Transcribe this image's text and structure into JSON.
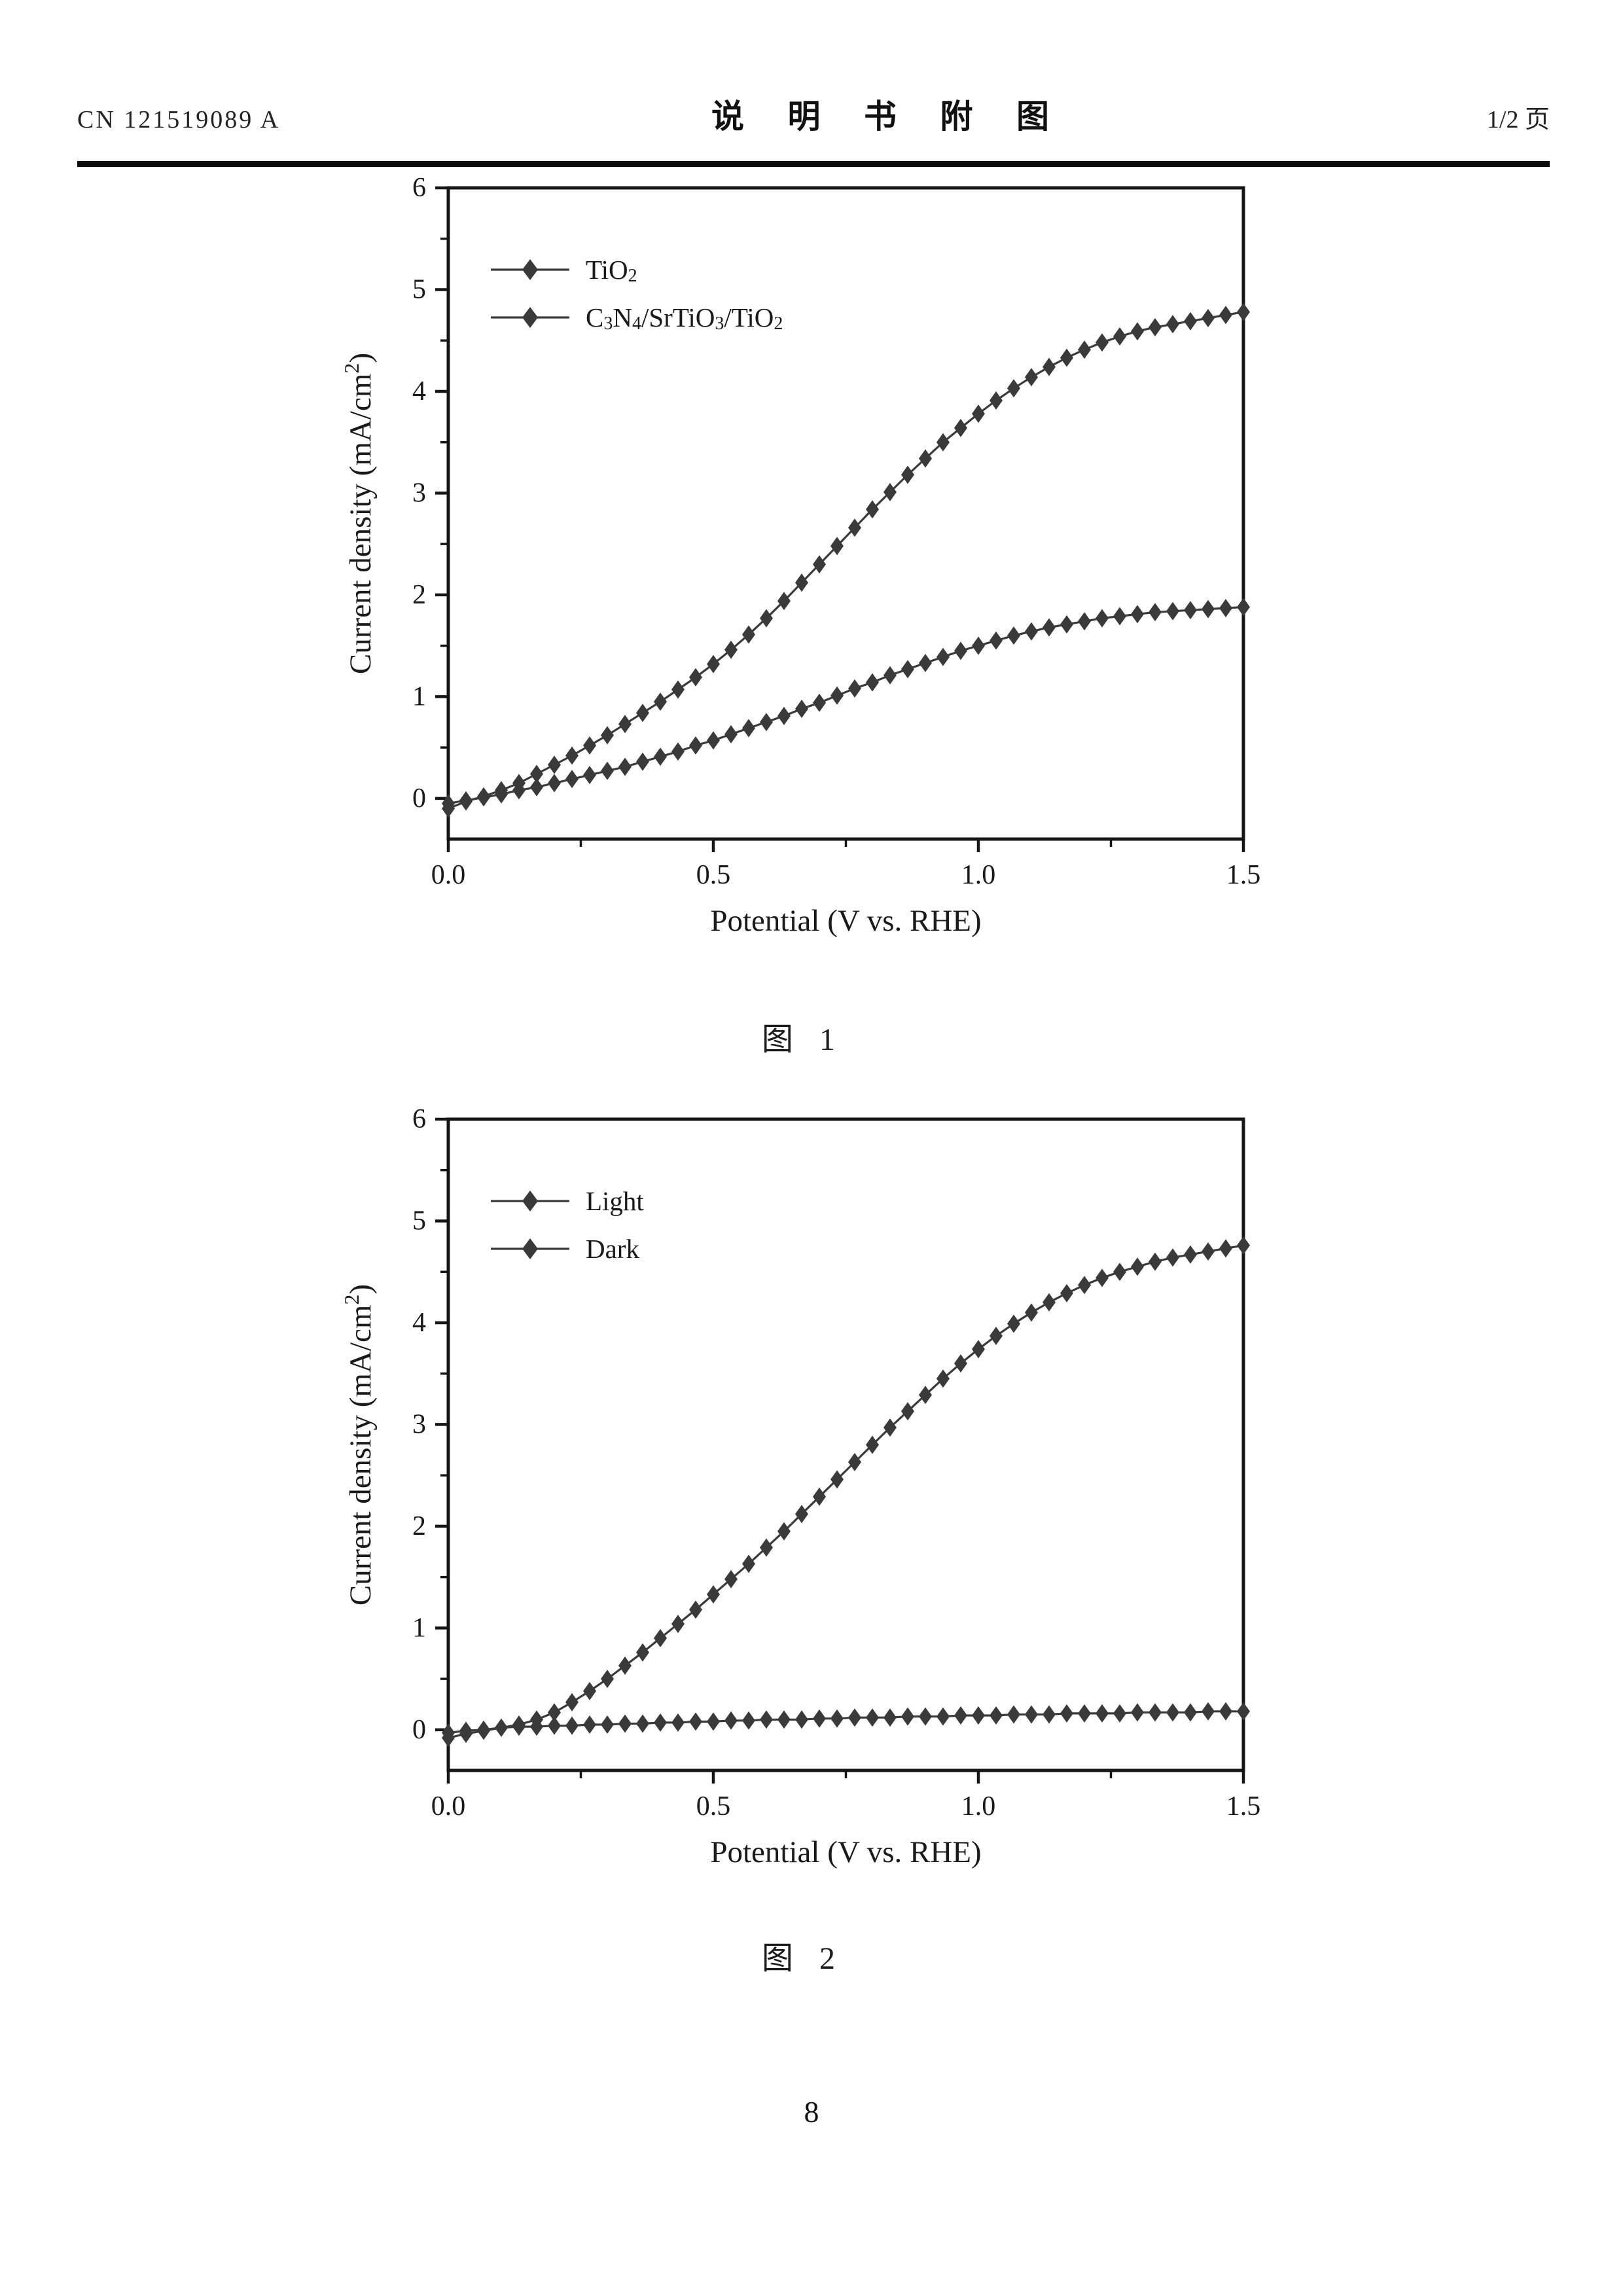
{
  "header": {
    "left": "CN 121519089 A",
    "center": "说 明 书 附 图",
    "right": "1/2 页"
  },
  "figures": [
    {
      "caption": "图 1"
    },
    {
      "caption": "图 2"
    }
  ],
  "footer": {
    "page_number": "8"
  },
  "ink": {
    "axis": "#161616",
    "curve": "#3a3a3a",
    "text": "#1a1a1a"
  },
  "chart_data": [
    {
      "type": "line",
      "title": "",
      "xlabel": "Potential (V vs. RHE)",
      "ylabel": "Current density (mA/cm²)",
      "ylabel_parts": [
        {
          "t": "Current density (mA/cm"
        },
        {
          "t": "2",
          "s": "sup"
        },
        {
          "t": ")"
        }
      ],
      "xlim": [
        0,
        1.5
      ],
      "ylim": [
        -0.4,
        6
      ],
      "xticks": [
        0.0,
        0.5,
        1.0,
        1.5
      ],
      "xtick_labels": [
        "0.0",
        "0.5",
        "1.0",
        "1.5"
      ],
      "xminor": [
        0.25,
        0.75,
        1.25
      ],
      "yticks": [
        0,
        1,
        2,
        3,
        4,
        5,
        6
      ],
      "ytick_labels": [
        "0",
        "1",
        "2",
        "3",
        "4",
        "5",
        "6"
      ],
      "yminor": [
        0.5,
        1.5,
        2.5,
        3.5,
        4.5,
        5.5
      ],
      "grid": false,
      "legend_position": "upper-left",
      "x_start": 0,
      "x_end": 1.5,
      "n_points": 46,
      "series": [
        {
          "name": "TiO2",
          "label": "TiO₂",
          "label_parts": [
            {
              "t": "TiO"
            },
            {
              "t": "2",
              "s": "sub"
            }
          ],
          "values": [
            -0.05,
            -0.02,
            0.01,
            0.04,
            0.08,
            0.11,
            0.15,
            0.19,
            0.23,
            0.27,
            0.31,
            0.36,
            0.41,
            0.46,
            0.52,
            0.57,
            0.63,
            0.69,
            0.75,
            0.81,
            0.88,
            0.94,
            1.01,
            1.08,
            1.14,
            1.21,
            1.27,
            1.33,
            1.39,
            1.45,
            1.5,
            1.55,
            1.6,
            1.64,
            1.68,
            1.71,
            1.74,
            1.77,
            1.79,
            1.81,
            1.83,
            1.84,
            1.85,
            1.86,
            1.87,
            1.88
          ]
        },
        {
          "name": "C3N4/SrTiO3/TiO2",
          "label": "C₃N₄/SrTiO₃/TiO₂",
          "label_parts": [
            {
              "t": "C"
            },
            {
              "t": "3",
              "s": "sub"
            },
            {
              "t": "N"
            },
            {
              "t": "4",
              "s": "sub"
            },
            {
              "t": "/SrTiO"
            },
            {
              "t": "3",
              "s": "sub"
            },
            {
              "t": "/TiO"
            },
            {
              "t": "2",
              "s": "sub"
            }
          ],
          "values": [
            -0.1,
            -0.03,
            0.02,
            0.08,
            0.15,
            0.24,
            0.33,
            0.42,
            0.52,
            0.62,
            0.73,
            0.84,
            0.95,
            1.07,
            1.19,
            1.32,
            1.46,
            1.61,
            1.77,
            1.94,
            2.12,
            2.3,
            2.48,
            2.66,
            2.84,
            3.01,
            3.18,
            3.34,
            3.5,
            3.64,
            3.78,
            3.91,
            4.03,
            4.14,
            4.24,
            4.33,
            4.41,
            4.48,
            4.54,
            4.59,
            4.63,
            4.66,
            4.69,
            4.72,
            4.75,
            4.78
          ]
        }
      ]
    },
    {
      "type": "line",
      "title": "",
      "xlabel": "Potential (V vs. RHE)",
      "ylabel": "Current density (mA/cm²)",
      "ylabel_parts": [
        {
          "t": "Current density (mA/cm"
        },
        {
          "t": "2",
          "s": "sup"
        },
        {
          "t": ")"
        }
      ],
      "xlim": [
        0,
        1.5
      ],
      "ylim": [
        -0.4,
        6
      ],
      "xticks": [
        0.0,
        0.5,
        1.0,
        1.5
      ],
      "xtick_labels": [
        "0.0",
        "0.5",
        "1.0",
        "1.5"
      ],
      "xminor": [
        0.25,
        0.75,
        1.25
      ],
      "yticks": [
        0,
        1,
        2,
        3,
        4,
        5,
        6
      ],
      "ytick_labels": [
        "0",
        "1",
        "2",
        "3",
        "4",
        "5",
        "6"
      ],
      "yminor": [
        0.5,
        1.5,
        2.5,
        3.5,
        4.5,
        5.5
      ],
      "grid": false,
      "legend_position": "upper-left",
      "x_start": 0,
      "x_end": 1.5,
      "n_points": 46,
      "series": [
        {
          "name": "Light",
          "label": "Light",
          "label_parts": [
            {
              "t": "Light"
            }
          ],
          "values": [
            -0.08,
            -0.04,
            -0.01,
            0.02,
            0.05,
            0.1,
            0.17,
            0.27,
            0.38,
            0.5,
            0.63,
            0.76,
            0.9,
            1.04,
            1.18,
            1.33,
            1.48,
            1.63,
            1.79,
            1.95,
            2.12,
            2.29,
            2.46,
            2.63,
            2.8,
            2.97,
            3.13,
            3.29,
            3.45,
            3.6,
            3.74,
            3.87,
            3.99,
            4.1,
            4.2,
            4.29,
            4.37,
            4.44,
            4.5,
            4.55,
            4.6,
            4.64,
            4.67,
            4.7,
            4.73,
            4.76
          ]
        },
        {
          "name": "Dark",
          "label": "Dark",
          "label_parts": [
            {
              "t": "Dark"
            }
          ],
          "values": [
            -0.03,
            -0.01,
            0.0,
            0.02,
            0.03,
            0.03,
            0.04,
            0.04,
            0.05,
            0.05,
            0.06,
            0.06,
            0.07,
            0.07,
            0.08,
            0.08,
            0.09,
            0.09,
            0.1,
            0.1,
            0.1,
            0.11,
            0.11,
            0.12,
            0.12,
            0.12,
            0.13,
            0.13,
            0.13,
            0.14,
            0.14,
            0.14,
            0.15,
            0.15,
            0.15,
            0.16,
            0.16,
            0.16,
            0.16,
            0.17,
            0.17,
            0.17,
            0.17,
            0.18,
            0.18,
            0.18
          ]
        }
      ]
    }
  ]
}
